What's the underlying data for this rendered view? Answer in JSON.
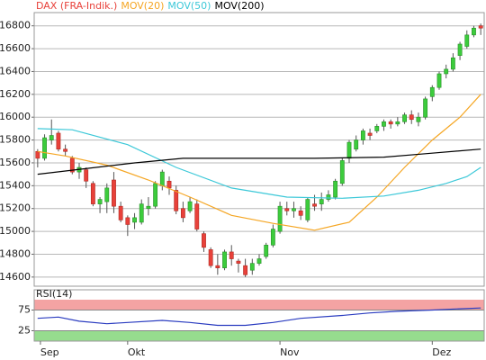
{
  "chart_data": [
    {
      "type": "candlestick",
      "xlim": [
        -0.5,
        64.5
      ],
      "ylim": [
        14520,
        16900
      ],
      "yticks": [
        14600,
        14800,
        15000,
        15200,
        15400,
        15600,
        15800,
        16000,
        16200,
        16400,
        16600,
        16800
      ],
      "grid": true,
      "up_color": "#3ccc3c",
      "down_color": "#e8413a",
      "series": [
        {
          "name": "DAX (FRA-Indik.)",
          "color": "#e8413a",
          "open": [
            15700,
            15640,
            15800,
            15860,
            15720,
            15640,
            15520,
            15540,
            15420,
            15240,
            15260,
            15450,
            15220,
            15120,
            15080,
            15080,
            15200,
            15220,
            15400,
            15440,
            15360,
            15200,
            15180,
            15240,
            14980,
            14840,
            14700,
            14680,
            14820,
            14740,
            14700,
            14660,
            14720,
            14780,
            14880,
            15000,
            15200,
            15180,
            15180,
            15100,
            15240,
            15240,
            15280,
            15300,
            15420,
            15640,
            15720,
            15800,
            15860,
            15880,
            15920,
            15960,
            15940,
            15960,
            16020,
            15960,
            16000,
            16180,
            16260,
            16380,
            16420,
            16540,
            16620,
            16720,
            16800
          ],
          "high": [
            15720,
            15850,
            15980,
            15880,
            15760,
            15660,
            15600,
            15560,
            15440,
            15300,
            15420,
            15520,
            15260,
            15140,
            15160,
            15280,
            15300,
            15440,
            15540,
            15480,
            15400,
            15260,
            15300,
            15280,
            15000,
            14860,
            14800,
            14840,
            14880,
            14760,
            14760,
            14760,
            14800,
            14900,
            15060,
            15260,
            15260,
            15260,
            15220,
            15300,
            15320,
            15340,
            15360,
            15460,
            15640,
            15800,
            15840,
            15900,
            15900,
            15940,
            15980,
            15980,
            16000,
            16040,
            16060,
            16040,
            16180,
            16280,
            16400,
            16460,
            16560,
            16660,
            16760,
            16800,
            16820
          ],
          "low": [
            15560,
            15620,
            15760,
            15700,
            15660,
            15500,
            15460,
            15380,
            15220,
            15160,
            15160,
            15160,
            15080,
            14960,
            15020,
            15060,
            15140,
            15200,
            15360,
            15320,
            15150,
            15080,
            15160,
            15000,
            14820,
            14680,
            14620,
            14660,
            14700,
            14640,
            14600,
            14620,
            14700,
            14760,
            14860,
            14980,
            15140,
            15120,
            15100,
            15080,
            15180,
            15180,
            15260,
            15280,
            15400,
            15600,
            15700,
            15760,
            15800,
            15860,
            15880,
            15900,
            15920,
            15940,
            15940,
            15920,
            15980,
            16140,
            16240,
            16340,
            16400,
            16500,
            16600,
            16700,
            16720
          ],
          "close": [
            15640,
            15820,
            15840,
            15720,
            15700,
            15520,
            15560,
            15440,
            15240,
            15280,
            15380,
            15220,
            15100,
            15060,
            15120,
            15240,
            15220,
            15420,
            15520,
            15380,
            15180,
            15120,
            15260,
            15020,
            14860,
            14700,
            14680,
            14820,
            14760,
            14720,
            14620,
            14720,
            14760,
            14880,
            15020,
            15220,
            15180,
            15200,
            15140,
            15280,
            15220,
            15280,
            15320,
            15440,
            15620,
            15780,
            15800,
            15880,
            15840,
            15920,
            15960,
            15940,
            15960,
            16020,
            15980,
            16000,
            16160,
            16260,
            16380,
            16420,
            16520,
            16640,
            16720,
            16780,
            16780
          ]
        },
        {
          "name": "MOV(20)",
          "color": "#f5a623",
          "x": [
            0,
            4,
            10,
            16,
            22,
            28,
            34,
            40,
            45,
            49,
            53,
            57,
            61,
            64
          ],
          "values": [
            15700,
            15660,
            15580,
            15450,
            15300,
            15140,
            15070,
            15010,
            15080,
            15300,
            15560,
            15800,
            16000,
            16200
          ]
        },
        {
          "name": "MOV(50)",
          "color": "#3cc8d8",
          "x": [
            0,
            5,
            13,
            20,
            28,
            36,
            44,
            50,
            55,
            59,
            62,
            64
          ],
          "values": [
            15900,
            15890,
            15760,
            15560,
            15380,
            15300,
            15290,
            15310,
            15360,
            15420,
            15480,
            15560
          ]
        },
        {
          "name": "MOV(200)",
          "color": "#000000",
          "x": [
            0,
            14,
            21,
            30,
            40,
            50,
            56,
            64
          ],
          "values": [
            15500,
            15600,
            15640,
            15640,
            15640,
            15650,
            15680,
            15720
          ]
        }
      ]
    },
    {
      "type": "line",
      "title": "RSI(14)",
      "xlim": [
        -0.5,
        64.5
      ],
      "ylim": [
        0,
        100
      ],
      "yticks": [
        25,
        75
      ],
      "xticks": [
        {
          "value": 0.4,
          "label": "Sep"
        },
        {
          "value": 13,
          "label": "Okt"
        },
        {
          "value": 35,
          "label": "Nov"
        },
        {
          "value": 57,
          "label": "Dez"
        }
      ],
      "bands": [
        {
          "range": [
            75,
            100
          ],
          "color": "#f4a3a3"
        },
        {
          "range": [
            0,
            25
          ],
          "color": "#96dc8e"
        }
      ],
      "series": [
        {
          "name": "RSI(14)",
          "color": "#2a3cc0",
          "x": [
            0,
            3,
            6,
            10,
            13,
            18,
            22,
            26,
            30,
            34,
            38,
            44,
            48,
            52,
            57,
            61,
            64
          ],
          "values": [
            55,
            58,
            48,
            42,
            45,
            50,
            45,
            38,
            38,
            45,
            55,
            62,
            68,
            72,
            75,
            78,
            80
          ]
        }
      ]
    }
  ]
}
